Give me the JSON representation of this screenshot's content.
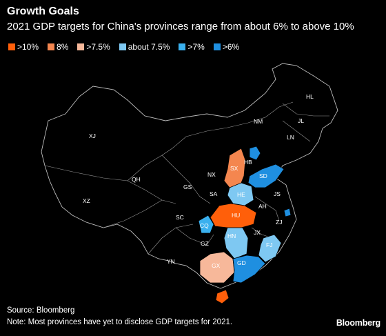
{
  "header": {
    "title": "Growth Goals",
    "subtitle": "2021 GDP targets for China's provinces range from about 6% to above 10%"
  },
  "legend": [
    {
      "label": ">10%",
      "color": "#ff5f0a"
    },
    {
      "label": "8%",
      "color": "#f4864f"
    },
    {
      "label": ">7.5%",
      "color": "#f7b89a"
    },
    {
      "label": "about 7.5%",
      "color": "#7ec8f2"
    },
    {
      "label": ">7%",
      "color": "#3ab0ee"
    },
    {
      "label": ">6%",
      "color": "#1f8fe0"
    }
  ],
  "provinces": {
    "HL": "HL",
    "JL": "JL",
    "LN": "LN",
    "NM": "NM",
    "XJ": "XJ",
    "XZ": "XZ",
    "QH": "QH",
    "GS": "GS",
    "NX": "NX",
    "SX": "SX",
    "HB_N": "HB",
    "SD": "SD",
    "SA": "SA",
    "HE": "HE",
    "JS": "JS",
    "AH": "AH",
    "SC": "SC",
    "HU": "HU",
    "ZJ": "ZJ",
    "CQ": "CQ",
    "HN": "HN",
    "JX": "JX",
    "GZ": "GZ",
    "FJ": "FJ",
    "YN": "YN",
    "GX": "GX",
    "GD": "GD"
  },
  "footer": {
    "source": "Source: Bloomberg",
    "note": "Note: Most provinces have yet to disclose GDP targets for 2021.",
    "brand": "Bloomberg"
  }
}
